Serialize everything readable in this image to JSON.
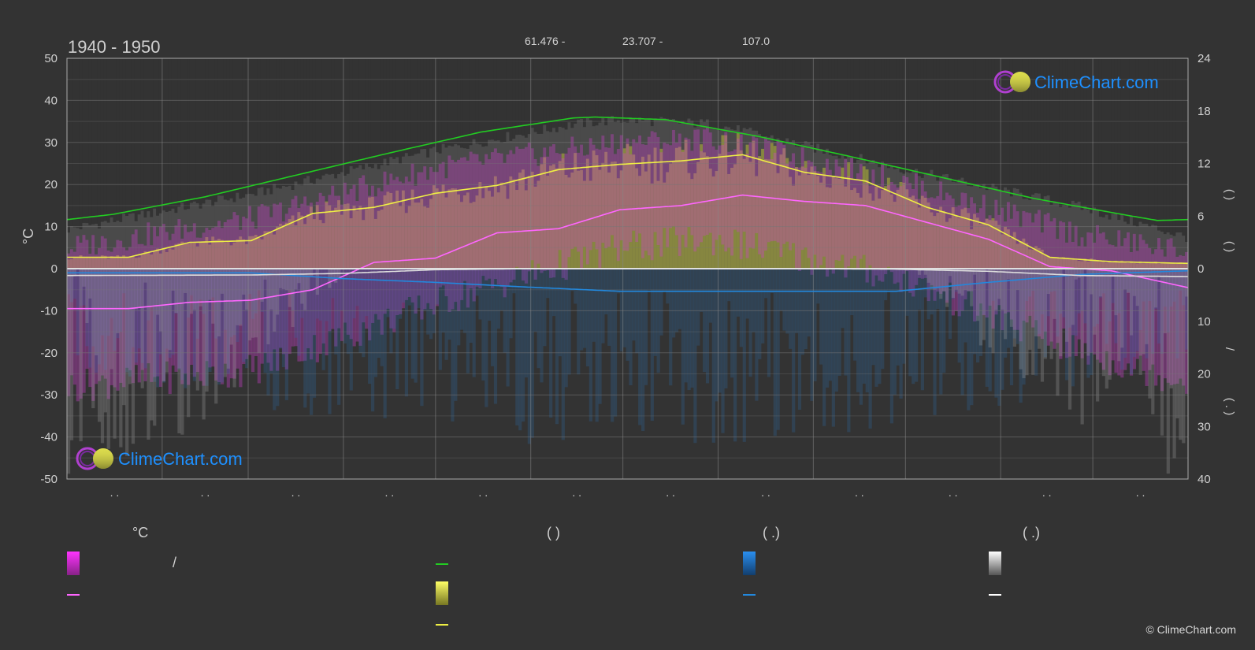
{
  "period": "1940 - 1950",
  "header_stats": [
    "61.476 -",
    "23.707 -",
    "107.0"
  ],
  "brand": "ClimeChart.com",
  "copyright": "© ClimeChart.com",
  "legend": {
    "temp_unit": "°C",
    "sunshine_paren": "(          )",
    "rain_paren": "(    .)",
    "snow_paren": "(    .)",
    "slash": "/"
  },
  "colors": {
    "background": "#333333",
    "daylight": "#22cc22",
    "sunshine": "#eeee44",
    "temp_mean": "#ff66ff",
    "temp_range": "#e040e0",
    "rain": "#2288dd",
    "snow": "#dddddd",
    "brand": "#1e90ff"
  },
  "chart_data": {
    "type": "line",
    "y_left": {
      "label": "°C",
      "ticks": [
        50,
        40,
        30,
        20,
        10,
        0,
        -10,
        -20,
        -30,
        -40,
        -50
      ],
      "range": [
        -50,
        50
      ]
    },
    "y_right_top": {
      "ticks": [
        24,
        18,
        12,
        6,
        0
      ],
      "range": [
        0,
        24
      ]
    },
    "y_right_bottom": {
      "ticks": [
        10,
        20,
        30,
        40
      ],
      "range": [
        0,
        40
      ]
    },
    "x_tick_labels": [
      ". .",
      ". .",
      ". .",
      ". .",
      ". .",
      ". .",
      ". .",
      ". .",
      ". .",
      ". .",
      ". .",
      ". ."
    ],
    "series": [
      {
        "key": "daylight",
        "axis": "right_hours",
        "x": [
          0,
          15,
          45,
          75,
          105,
          135,
          165,
          172,
          195,
          225,
          255,
          285,
          315,
          345,
          355,
          365
        ],
        "values": [
          5.6,
          6.2,
          8.2,
          10.7,
          13.2,
          15.6,
          17.2,
          17.3,
          17.0,
          15.1,
          12.8,
          10.4,
          8.0,
          6.1,
          5.5,
          5.6
        ]
      },
      {
        "key": "sunshine",
        "axis": "right_hours",
        "x": [
          0,
          20,
          40,
          60,
          80,
          100,
          120,
          140,
          160,
          180,
          200,
          220,
          240,
          260,
          280,
          300,
          320,
          340,
          365
        ],
        "values": [
          1.3,
          1.3,
          3.0,
          3.2,
          6.3,
          7.0,
          8.6,
          9.5,
          11.3,
          11.9,
          12.3,
          13.0,
          11.0,
          10.0,
          7.0,
          5.0,
          1.3,
          0.8,
          0.6
        ]
      },
      {
        "key": "temp_mean",
        "axis": "left_temp",
        "x": [
          0,
          20,
          40,
          60,
          80,
          100,
          120,
          140,
          160,
          180,
          200,
          220,
          240,
          260,
          280,
          300,
          320,
          340,
          365
        ],
        "values": [
          -9.5,
          -9.5,
          -8.0,
          -7.5,
          -5.0,
          1.5,
          2.5,
          8.5,
          9.5,
          14.0,
          15.0,
          17.5,
          16.0,
          15.0,
          11.0,
          7.0,
          0.5,
          -0.5,
          -4.5
        ]
      },
      {
        "key": "rain",
        "axis": "right_mm",
        "x": [
          0,
          60,
          90,
          120,
          150,
          180,
          210,
          240,
          270,
          300,
          330,
          365
        ],
        "values": [
          0.8,
          0.8,
          1.9,
          2.6,
          3.5,
          4.3,
          4.3,
          4.3,
          4.3,
          2.6,
          1.1,
          0.4
        ]
      },
      {
        "key": "snow",
        "axis": "right_mm",
        "x": [
          0,
          60,
          90,
          120,
          150,
          240,
          270,
          300,
          330,
          365
        ],
        "values": [
          1.3,
          1.2,
          0.9,
          0.2,
          0.0,
          0.0,
          0.1,
          0.5,
          1.3,
          1.5
        ]
      }
    ],
    "bands": {
      "sunshine_envelope_hours": {
        "x": [
          0,
          60,
          120,
          165,
          180,
          210,
          270,
          330,
          365
        ],
        "values": [
          4.5,
          8.5,
          13.5,
          16.5,
          17.0,
          16.5,
          11.5,
          7.0,
          3.5
        ]
      },
      "temp_max_celsius": {
        "x": [
          0,
          60,
          120,
          180,
          210,
          270,
          330,
          365
        ],
        "values": [
          5,
          12,
          24,
          30,
          31,
          21,
          8,
          4
        ]
      },
      "temp_min_celsius": {
        "x": [
          0,
          60,
          120,
          180,
          210,
          270,
          330,
          365
        ],
        "values": [
          -28,
          -24,
          -8,
          5,
          7,
          -2,
          -20,
          -27
        ]
      }
    },
    "grid": true
  }
}
